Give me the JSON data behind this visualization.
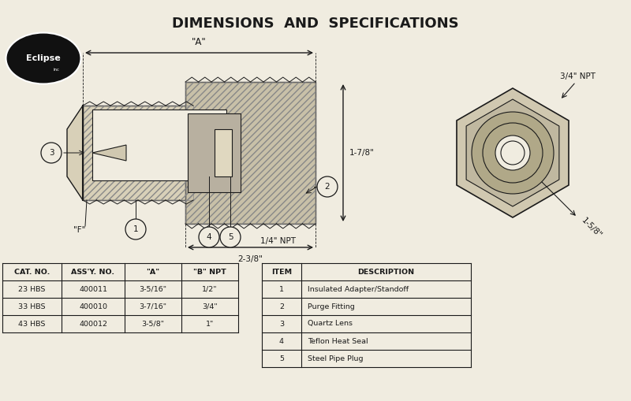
{
  "title": "DIMENSIONS  AND  SPECIFICATIONS",
  "title_fontsize": 13,
  "title_fontweight": "bold",
  "bg_color": "#f0ece0",
  "line_color": "#1a1a1a",
  "hatch_color": "#555555",
  "logo_text": "Eclipse",
  "logo_bg": "#111111",
  "logo_text_color": "#ffffff",
  "dim_label_A": "\"A\"",
  "dim_label_B": "2-3/8\"",
  "dim_1_7_8": "1-7/8\"",
  "dim_npt_1_4": "1/4\" NPT",
  "dim_npt_3_4": "3/4\" NPT",
  "dim_1_5_8": "1-5/8\"",
  "label_F": "\"F\"",
  "item_circles": [
    "1",
    "2",
    "3",
    "4",
    "5"
  ],
  "cat_header": [
    "CAT. NO.",
    "ASS'Y. NO.",
    "\"A\"",
    "\"B\" NPT"
  ],
  "cat_rows": [
    [
      "23 HBS",
      "400011",
      "3-5/16\"",
      "1/2\""
    ],
    [
      "33 HBS",
      "400010",
      "3-7/16\"",
      "3/4\""
    ],
    [
      "43 HBS",
      "400012",
      "3-5/8\"",
      "1\""
    ]
  ],
  "item_header": [
    "ITEM",
    "DESCRIPTION"
  ],
  "item_rows": [
    [
      "1",
      "Insulated Adapter/Standoff"
    ],
    [
      "2",
      "Purge Fitting"
    ],
    [
      "3",
      "Quartz Lens"
    ],
    [
      "4",
      "Teflon Heat Seal"
    ],
    [
      "5",
      "Steel Pipe Plug"
    ]
  ]
}
